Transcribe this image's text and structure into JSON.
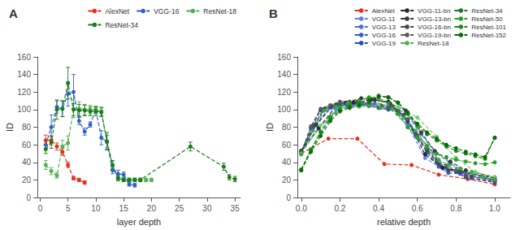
{
  "chart_data": [
    {
      "type": "line",
      "title": "A",
      "xlabel": "layer depth",
      "ylabel": "ID",
      "xlim": [
        -0.5,
        36
      ],
      "ylim": [
        0,
        160
      ],
      "xticks": [
        0,
        5,
        10,
        15,
        20,
        25,
        30,
        35
      ],
      "yticks": [
        0,
        20,
        40,
        60,
        80,
        100,
        120,
        140,
        160
      ],
      "grid": false,
      "legend": "upper right",
      "marker": "o",
      "line_style": "dashed",
      "series": [
        {
          "name": "AlexNet",
          "color": "#e8301c",
          "x": [
            1,
            2,
            3,
            4,
            5,
            6,
            7,
            8
          ],
          "values": [
            65,
            65,
            58,
            52,
            37,
            22,
            20,
            17
          ],
          "yerr": [
            6,
            5,
            4,
            4,
            3,
            2,
            2,
            2
          ]
        },
        {
          "name": "VGG-16",
          "color": "#3060c8",
          "x": [
            1,
            2,
            3,
            4,
            5,
            6,
            7,
            8,
            9,
            10,
            11,
            12,
            13,
            14,
            15,
            16,
            17
          ],
          "values": [
            60,
            80,
            103,
            101,
            118,
            120,
            87,
            75,
            83,
            100,
            68,
            63,
            31,
            27,
            26,
            15,
            14
          ],
          "yerr": [
            5,
            14,
            7,
            9,
            14,
            20,
            4,
            4,
            3,
            3,
            8,
            8,
            4,
            4,
            3,
            2,
            2
          ]
        },
        {
          "name": "ResNet-18",
          "color": "#52b052",
          "x": [
            1,
            2,
            3,
            4,
            5,
            6,
            7,
            8,
            9,
            10,
            11,
            12,
            13,
            14,
            15,
            16,
            17,
            18,
            19,
            20
          ],
          "values": [
            37,
            30,
            25,
            58,
            62,
            101,
            101,
            100,
            100,
            100,
            98,
            64,
            37,
            22,
            20,
            20,
            20,
            20,
            20,
            20
          ],
          "yerr": [
            5,
            4,
            3,
            7,
            8,
            10,
            8,
            6,
            5,
            4,
            5,
            7,
            4,
            2,
            2,
            2,
            2,
            2,
            2,
            2
          ]
        },
        {
          "name": "ResNet-34",
          "color": "#1a7a1a",
          "x": [
            1,
            2,
            3,
            4,
            5,
            6,
            7,
            8,
            9,
            10,
            11,
            12,
            13,
            14,
            15,
            16,
            17,
            18,
            27,
            33,
            34,
            35
          ],
          "values": [
            55,
            63,
            100,
            101,
            130,
            100,
            99,
            99,
            98,
            98,
            97,
            64,
            37,
            22,
            20,
            20,
            20,
            20,
            58,
            35,
            23,
            21
          ],
          "yerr": [
            5,
            7,
            11,
            9,
            18,
            7,
            7,
            6,
            5,
            5,
            5,
            10,
            5,
            3,
            2,
            2,
            2,
            2,
            5,
            4,
            3,
            3
          ]
        }
      ]
    },
    {
      "type": "line",
      "title": "B",
      "xlabel": "relative depth",
      "ylabel": "ID",
      "xlim": [
        -0.02,
        1.08
      ],
      "ylim": [
        0,
        160
      ],
      "xticks": [
        {
          "value": 0.0,
          "label": "0.0"
        },
        0.2,
        0.4,
        0.6,
        0.8,
        {
          "value": 1.0,
          "label": "1.0"
        }
      ],
      "yticks": [
        0,
        20,
        40,
        60,
        80,
        100,
        120,
        140,
        160
      ],
      "grid": false,
      "legend": "upper right",
      "marker": "o",
      "line_style": "dashed",
      "series": [
        {
          "name": "AlexNet",
          "color": "#e8301c",
          "x": [
            0.0,
            0.14,
            0.29,
            0.43,
            0.57,
            0.71,
            0.86,
            1.0
          ],
          "values": [
            50,
            67,
            67,
            38,
            37,
            26,
            21,
            15
          ]
        },
        {
          "name": "VGG-11",
          "color": "#6080e8",
          "x": [
            0.0,
            0.09,
            0.18,
            0.27,
            0.36,
            0.45,
            0.55,
            0.64,
            0.73,
            0.82,
            1.0
          ],
          "values": [
            52,
            78,
            100,
            105,
            106,
            103,
            82,
            45,
            33,
            29,
            20
          ]
        },
        {
          "name": "VGG-13",
          "color": "#4870d8",
          "x": [
            0.0,
            0.077,
            0.154,
            0.23,
            0.31,
            0.38,
            0.46,
            0.54,
            0.62,
            0.69,
            0.77,
            0.85,
            1.0
          ],
          "values": [
            52,
            82,
            102,
            106,
            108,
            107,
            104,
            96,
            72,
            52,
            39,
            28,
            20
          ]
        },
        {
          "name": "VGG-16",
          "color": "#3060c8",
          "x": [
            0.0,
            0.06,
            0.12,
            0.18,
            0.24,
            0.29,
            0.35,
            0.41,
            0.47,
            0.53,
            0.59,
            0.65,
            0.71,
            0.76,
            0.82,
            0.88,
            1.0
          ],
          "values": [
            51,
            80,
            101,
            104,
            105,
            107,
            105,
            102,
            101,
            91,
            71,
            51,
            35,
            28,
            27,
            22,
            18
          ]
        },
        {
          "name": "VGG-19",
          "color": "#2050b8",
          "x": [
            0.0,
            0.05,
            0.1,
            0.15,
            0.2,
            0.25,
            0.3,
            0.35,
            0.4,
            0.45,
            0.5,
            0.55,
            0.6,
            0.65,
            0.7,
            0.75,
            0.8,
            0.85,
            1.0
          ],
          "values": [
            50,
            79,
            99,
            103,
            106,
            107,
            105,
            104,
            102,
            100,
            98,
            86,
            69,
            56,
            41,
            34,
            29,
            23,
            17
          ]
        },
        {
          "name": "VGG-11-bn",
          "color": "#282828",
          "x": [
            0.0,
            0.09,
            0.18,
            0.27,
            0.36,
            0.45,
            0.55,
            0.64,
            0.73,
            0.82,
            1.0
          ],
          "values": [
            53,
            79,
            104,
            108,
            111,
            109,
            88,
            49,
            34,
            30,
            22
          ]
        },
        {
          "name": "VGG-13-bn",
          "color": "#383838",
          "x": [
            0.0,
            0.077,
            0.154,
            0.23,
            0.31,
            0.38,
            0.46,
            0.54,
            0.62,
            0.69,
            0.77,
            0.85,
            1.0
          ],
          "values": [
            53,
            83,
            104,
            108,
            113,
            111,
            107,
            99,
            74,
            53,
            41,
            31,
            23
          ]
        },
        {
          "name": "VGG-16-bn",
          "color": "#484848",
          "x": [
            0.0,
            0.06,
            0.12,
            0.18,
            0.24,
            0.29,
            0.35,
            0.41,
            0.47,
            0.53,
            0.59,
            0.65,
            0.71,
            0.76,
            0.82,
            0.88,
            1.0
          ],
          "values": [
            53,
            81,
            101,
            106,
            108,
            109,
            107,
            105,
            103,
            94,
            74,
            53,
            38,
            31,
            29,
            24,
            20
          ]
        },
        {
          "name": "VGG-19-bn",
          "color": "#585858",
          "x": [
            0.0,
            0.05,
            0.1,
            0.15,
            0.2,
            0.25,
            0.3,
            0.35,
            0.4,
            0.45,
            0.5,
            0.55,
            0.6,
            0.65,
            0.7,
            0.75,
            0.8,
            0.85,
            1.0
          ],
          "values": [
            51,
            81,
            101,
            105,
            109,
            109,
            107,
            106,
            104,
            102,
            99,
            89,
            71,
            59,
            43,
            36,
            31,
            25,
            19
          ]
        },
        {
          "name": "ResNet-18",
          "color": "#70d070",
          "x": [
            0.0,
            0.1,
            0.2,
            0.3,
            0.4,
            0.5,
            0.6,
            0.7,
            0.8,
            0.9,
            1.0
          ],
          "values": [
            50,
            82,
            101,
            103,
            106,
            103,
            91,
            69,
            45,
            29,
            23
          ]
        },
        {
          "name": "ResNet-34",
          "color": "#3aaa3a",
          "x": [
            0.0,
            0.06,
            0.12,
            0.18,
            0.24,
            0.29,
            0.35,
            0.41,
            0.47,
            0.53,
            0.59,
            0.65,
            0.71,
            0.76,
            0.82,
            0.88,
            0.94,
            1.0
          ],
          "values": [
            49,
            76,
            99,
            103,
            107,
            105,
            104,
            102,
            101,
            91,
            76,
            59,
            43,
            37,
            33,
            29,
            23,
            21
          ]
        },
        {
          "name": "ResNet-50",
          "color": "#28a028",
          "x": [
            0.0,
            0.05,
            0.1,
            0.15,
            0.2,
            0.25,
            0.3,
            0.35,
            0.4,
            0.45,
            0.5,
            0.55,
            0.6,
            0.65,
            0.7,
            0.75,
            0.8,
            0.85,
            0.9,
            0.95,
            1.0
          ],
          "values": [
            31,
            55,
            75,
            92,
            103,
            106,
            110,
            114,
            113,
            107,
            95,
            80,
            68,
            57,
            50,
            46,
            43,
            41,
            39,
            38,
            40
          ]
        },
        {
          "name": "ResNet-101",
          "color": "#1a8a1a",
          "x": [
            0.0,
            0.05,
            0.1,
            0.15,
            0.2,
            0.25,
            0.3,
            0.35,
            0.4,
            0.45,
            0.5,
            0.55,
            0.6,
            0.65,
            0.7,
            0.75,
            0.8,
            0.85,
            0.9,
            0.95,
            1.0
          ],
          "values": [
            32,
            54,
            74,
            90,
            100,
            104,
            107,
            112,
            116,
            114,
            108,
            95,
            82,
            72,
            65,
            58,
            53,
            50,
            47,
            44,
            68
          ]
        },
        {
          "name": "ResNet-152",
          "color": "#0a6a0a",
          "x": [
            0.0,
            0.05,
            0.1,
            0.15,
            0.2,
            0.25,
            0.3,
            0.35,
            0.4,
            0.45,
            0.5,
            0.55,
            0.6,
            0.65,
            0.7,
            0.75,
            0.8,
            0.85,
            0.9,
            0.95,
            1.0
          ],
          "values": [
            31,
            52,
            70,
            87,
            98,
            102,
            105,
            110,
            115,
            114,
            108,
            97,
            84,
            74,
            67,
            60,
            56,
            52,
            49,
            46,
            68
          ]
        }
      ]
    }
  ]
}
